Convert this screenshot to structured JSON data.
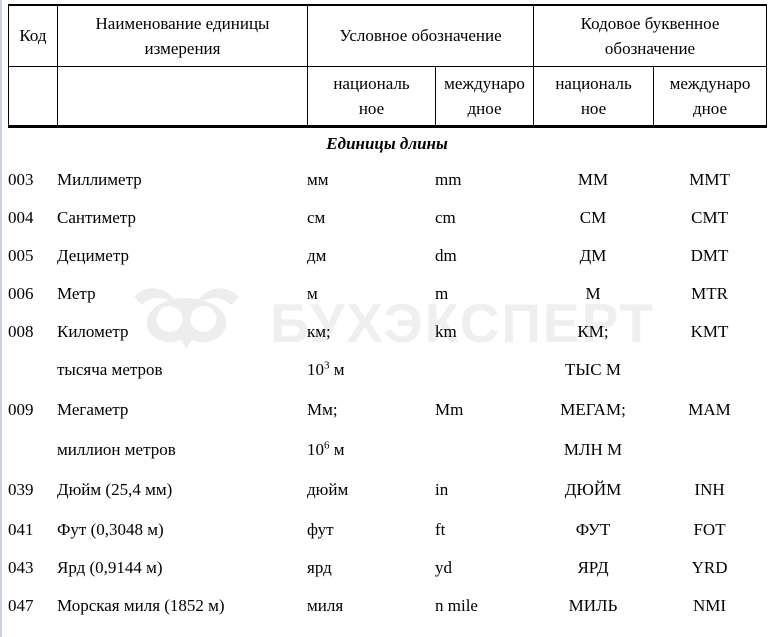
{
  "page": {
    "background": "#ffffff",
    "left_edge_line_color": "#c9d1e3",
    "border_color": "#000000"
  },
  "watermark": {
    "icon": "owl-logo",
    "text": "БУХЭКСПЕРТ",
    "color": "#efefef"
  },
  "table": {
    "header": {
      "code": "Код",
      "name": "Наименование единицы\nизмерения",
      "symbol_group": "Условное обозначение",
      "letter_code_group": "Кодовое буквенное\nобозначение",
      "sub_national": "националь\nное",
      "sub_international": "междунаро\nдное"
    },
    "section_title": "Единицы длины",
    "columns": [
      "code",
      "name",
      "symbol_national",
      "symbol_international",
      "letter_national",
      "letter_international"
    ],
    "rows": [
      {
        "code": "003",
        "name": "Миллиметр",
        "symbol_national": "мм",
        "symbol_international": "mm",
        "letter_national": "ММ",
        "letter_international": "MMT"
      },
      {
        "code": "004",
        "name": "Сантиметр",
        "symbol_national": "см",
        "symbol_international": "cm",
        "letter_national": "СМ",
        "letter_international": "CMT"
      },
      {
        "code": "005",
        "name": "Дециметр",
        "symbol_national": "дм",
        "symbol_international": "dm",
        "letter_national": "ДМ",
        "letter_international": "DMT"
      },
      {
        "code": "006",
        "name": "Метр",
        "symbol_national": "м",
        "symbol_international": "m",
        "letter_national": "М",
        "letter_international": "MTR"
      },
      {
        "code": "008",
        "name": "Километр",
        "symbol_national": "км;",
        "symbol_international": "km",
        "letter_national": "КМ;",
        "letter_international": "KMT"
      },
      {
        "code": "",
        "name": "тысяча метров",
        "symbol_national": "10^{3} м",
        "symbol_international": "",
        "letter_national": "ТЫС М",
        "letter_international": ""
      },
      {
        "code": "009",
        "name": "Мегаметр",
        "symbol_national": "Мм;",
        "symbol_international": "Mm",
        "letter_national": "МЕГАМ;",
        "letter_international": "MAM",
        "gap_before": true
      },
      {
        "code": "",
        "name": "миллион метров",
        "symbol_national": "10^{6} м",
        "symbol_international": "",
        "letter_national": "МЛН М",
        "letter_international": ""
      },
      {
        "code": "039",
        "name": "Дюйм (25,4 мм)",
        "symbol_national": "дюйм",
        "symbol_international": "in",
        "letter_national": "ДЮЙМ",
        "letter_international": "INH",
        "gap_before": true
      },
      {
        "code": "041",
        "name": "Фут (0,3048 м)",
        "symbol_national": "фут",
        "symbol_international": "ft",
        "letter_national": "ФУТ",
        "letter_international": "FOT"
      },
      {
        "code": "043",
        "name": "Ярд (0,9144 м)",
        "symbol_national": "ярд",
        "symbol_international": "yd",
        "letter_national": "ЯРД",
        "letter_international": "YRD"
      },
      {
        "code": "047",
        "name": "Морская миля (1852 м)",
        "symbol_national": "миля",
        "symbol_international": "n mile",
        "letter_national": "МИЛЬ",
        "letter_international": "NMI"
      }
    ]
  }
}
